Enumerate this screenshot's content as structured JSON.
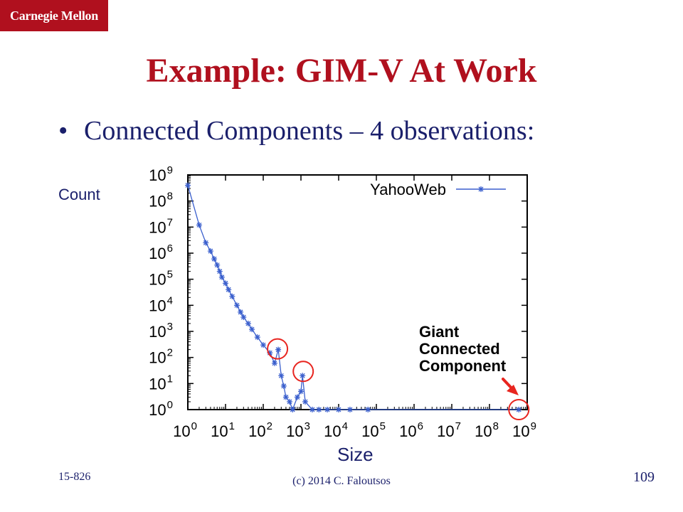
{
  "logo": {
    "text": "Carnegie Mellon"
  },
  "slide": {
    "title": "Example: GIM-V At Work",
    "bullet_symbol": "•",
    "bullet": "Connected Components – 4 observations:",
    "ylabel": "Count",
    "xlabel": "Size"
  },
  "colors": {
    "brand": "#b0101e",
    "body_text": "#1a1f6b",
    "series": "#3a5fcd",
    "highlight": "#e8251f"
  },
  "chart_data": {
    "type": "scatter",
    "xscale": "log",
    "yscale": "log",
    "xlim": [
      1,
      1000000000
    ],
    "ylim": [
      1,
      1000000000
    ],
    "xticks": [
      {
        "base": "10",
        "exp": "0"
      },
      {
        "base": "10",
        "exp": "1"
      },
      {
        "base": "10",
        "exp": "2"
      },
      {
        "base": "10",
        "exp": "3"
      },
      {
        "base": "10",
        "exp": "4"
      },
      {
        "base": "10",
        "exp": "5"
      },
      {
        "base": "10",
        "exp": "6"
      },
      {
        "base": "10",
        "exp": "7"
      },
      {
        "base": "10",
        "exp": "8"
      },
      {
        "base": "10",
        "exp": "9"
      }
    ],
    "yticks": [
      {
        "base": "10",
        "exp": "0"
      },
      {
        "base": "10",
        "exp": "1"
      },
      {
        "base": "10",
        "exp": "2"
      },
      {
        "base": "10",
        "exp": "3"
      },
      {
        "base": "10",
        "exp": "4"
      },
      {
        "base": "10",
        "exp": "5"
      },
      {
        "base": "10",
        "exp": "6"
      },
      {
        "base": "10",
        "exp": "7"
      },
      {
        "base": "10",
        "exp": "8"
      },
      {
        "base": "10",
        "exp": "9"
      }
    ],
    "legend": "top-right",
    "grid": false,
    "series": [
      {
        "name": "YahooWeb",
        "points": [
          [
            1,
            400000000
          ],
          [
            2,
            12000000
          ],
          [
            3,
            2500000
          ],
          [
            4,
            1200000
          ],
          [
            5,
            600000
          ],
          [
            6,
            350000
          ],
          [
            7,
            200000
          ],
          [
            8,
            120000
          ],
          [
            10,
            70000
          ],
          [
            12,
            40000
          ],
          [
            15,
            22000
          ],
          [
            20,
            10000
          ],
          [
            25,
            5500
          ],
          [
            30,
            3500
          ],
          [
            40,
            2000
          ],
          [
            50,
            1200
          ],
          [
            70,
            600
          ],
          [
            100,
            300
          ],
          [
            150,
            150
          ],
          [
            200,
            60
          ],
          [
            250,
            200
          ],
          [
            300,
            20
          ],
          [
            350,
            8
          ],
          [
            400,
            3
          ],
          [
            500,
            2
          ],
          [
            600,
            1
          ],
          [
            800,
            3
          ],
          [
            1000,
            5
          ],
          [
            1100,
            20
          ],
          [
            1300,
            2
          ],
          [
            2000,
            1
          ],
          [
            3000,
            1
          ],
          [
            5000,
            1
          ],
          [
            10000,
            1
          ],
          [
            20000,
            1
          ],
          [
            60000,
            1
          ],
          [
            600000000,
            1
          ]
        ]
      }
    ],
    "annotations": [
      {
        "lines": [
          "Giant",
          "Connected",
          "Component"
        ]
      }
    ]
  },
  "footer": {
    "course": "15-826",
    "copyright": "(c) 2014  C. Faloutsos",
    "page": "109"
  }
}
